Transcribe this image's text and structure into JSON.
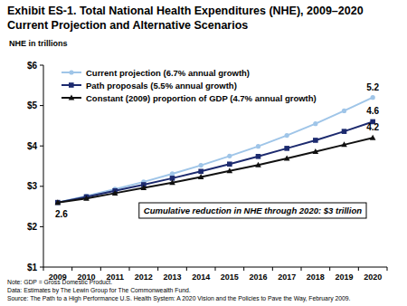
{
  "chart_data": {
    "type": "line",
    "title": "Exhibit ES-1. Total National Health Expenditures (NHE), 2009–2020",
    "subtitle": "Current Projection and Alternative Scenarios",
    "y_label": "NHE in trillions",
    "categories": [
      "2009",
      "2010",
      "2011",
      "2012",
      "2013",
      "2014",
      "2015",
      "2016",
      "2017",
      "2018",
      "2019",
      "2020"
    ],
    "series": [
      {
        "name": "Current projection (6.7% annual growth)",
        "color": "#9fc5e8",
        "marker": "circle",
        "line_style": "solid",
        "values": [
          2.6,
          2.76,
          2.93,
          3.11,
          3.31,
          3.52,
          3.75,
          3.99,
          4.26,
          4.55,
          4.87,
          5.2
        ],
        "value_labels": [
          "2.6",
          null,
          null,
          null,
          null,
          null,
          null,
          null,
          null,
          null,
          null,
          "5.2"
        ]
      },
      {
        "name": "Path proposals (5.5% annual growth)",
        "color": "#1c2a6e",
        "marker": "square",
        "line_style": "solid",
        "values": [
          2.6,
          2.74,
          2.89,
          3.04,
          3.2,
          3.37,
          3.55,
          3.74,
          3.94,
          4.14,
          4.36,
          4.6
        ],
        "value_labels": [
          null,
          null,
          null,
          null,
          null,
          null,
          null,
          null,
          null,
          null,
          null,
          "4.6"
        ]
      },
      {
        "name": "Constant (2009) proportion of GDP (4.7% annual growth)",
        "color": "#111111",
        "marker": "triangle",
        "line_style": "solid",
        "values": [
          2.6,
          2.7,
          2.83,
          2.96,
          3.09,
          3.23,
          3.38,
          3.53,
          3.69,
          3.86,
          4.03,
          4.2
        ],
        "value_labels": [
          null,
          null,
          null,
          null,
          null,
          null,
          null,
          null,
          null,
          null,
          null,
          "4.2"
        ]
      }
    ],
    "ylim": [
      1,
      6
    ],
    "yticks": [
      {
        "value": 1,
        "label": "$1"
      },
      {
        "value": 2,
        "label": "$2"
      },
      {
        "value": 3,
        "label": "$3"
      },
      {
        "value": 4,
        "label": "$4"
      },
      {
        "value": 5,
        "label": "$5"
      },
      {
        "value": 6,
        "label": "$6"
      }
    ],
    "grid": false,
    "legend": "upper left",
    "annotation": "Cumulative reduction in NHE through 2020: $3 trillion",
    "notes": [
      "Note: GDP = Gross Domestic Product.",
      "Data: Estimates by The Lewin Group for The Commonwealth Fund.",
      "Source: The Path to a High Performance U.S. Health System: A 2020 Vision and the Policies to Pave the Way, February 2009."
    ]
  }
}
